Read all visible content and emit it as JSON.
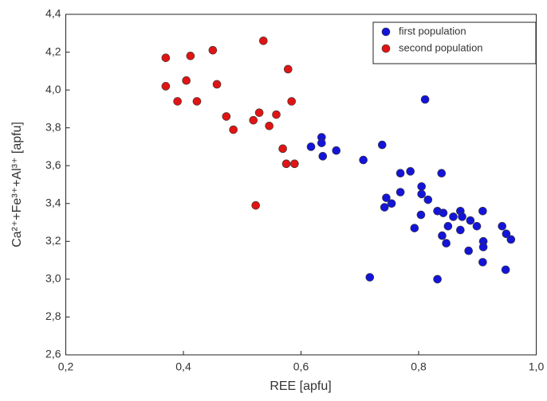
{
  "chart_data": {
    "type": "scatter",
    "xlabel": "REE [apfu]",
    "ylabel": "Ca²⁺+Fe³⁺+Al³⁺ [apfu]",
    "xlim": [
      0.2,
      1.0
    ],
    "ylim": [
      2.6,
      4.4
    ],
    "xticks": [
      {
        "value": 0.2,
        "label": "0,2"
      },
      {
        "value": 0.4,
        "label": "0,4"
      },
      {
        "value": 0.6,
        "label": "0,6"
      },
      {
        "value": 0.8,
        "label": "0,8"
      },
      {
        "value": 1.0,
        "label": "1,0"
      }
    ],
    "yticks": [
      {
        "value": 2.6,
        "label": "2,6"
      },
      {
        "value": 2.8,
        "label": "2,8"
      },
      {
        "value": 3.0,
        "label": "3,0"
      },
      {
        "value": 3.2,
        "label": "3,2"
      },
      {
        "value": 3.4,
        "label": "3,4"
      },
      {
        "value": 3.6,
        "label": "3,6"
      },
      {
        "value": 3.8,
        "label": "3,8"
      },
      {
        "value": 4.0,
        "label": "4,0"
      },
      {
        "value": 4.2,
        "label": "4,2"
      },
      {
        "value": 4.4,
        "label": "4,4"
      }
    ],
    "legend": "upper right",
    "series": [
      {
        "name": "first population",
        "color": "#1414d8",
        "x": [
          0.617,
          0.635,
          0.635,
          0.637,
          0.66,
          0.706,
          0.738,
          0.811,
          0.745,
          0.742,
          0.754,
          0.769,
          0.769,
          0.786,
          0.805,
          0.805,
          0.816,
          0.804,
          0.793,
          0.839,
          0.832,
          0.842,
          0.84,
          0.847,
          0.85,
          0.859,
          0.871,
          0.874,
          0.871,
          0.888,
          0.899,
          0.885,
          0.909,
          0.91,
          0.91,
          0.909,
          0.942,
          0.949,
          0.957,
          0.948,
          0.832,
          0.717
        ],
        "values": [
          3.7,
          3.75,
          3.72,
          3.65,
          3.68,
          3.63,
          3.71,
          3.95,
          3.43,
          3.38,
          3.4,
          3.46,
          3.56,
          3.57,
          3.49,
          3.45,
          3.42,
          3.34,
          3.27,
          3.56,
          3.36,
          3.35,
          3.23,
          3.19,
          3.28,
          3.33,
          3.36,
          3.33,
          3.26,
          3.31,
          3.28,
          3.15,
          3.36,
          3.2,
          3.17,
          3.09,
          3.28,
          3.24,
          3.21,
          3.05,
          3.0,
          3.01
        ]
      },
      {
        "name": "second population",
        "color": "#e01414",
        "x": [
          0.37,
          0.412,
          0.45,
          0.536,
          0.37,
          0.405,
          0.457,
          0.578,
          0.39,
          0.423,
          0.473,
          0.529,
          0.558,
          0.584,
          0.519,
          0.546,
          0.485,
          0.569,
          0.575,
          0.589,
          0.523
        ],
        "values": [
          4.17,
          4.18,
          4.21,
          4.26,
          4.02,
          4.05,
          4.03,
          4.11,
          3.94,
          3.94,
          3.86,
          3.88,
          3.87,
          3.94,
          3.84,
          3.81,
          3.79,
          3.69,
          3.61,
          3.61,
          3.39
        ]
      }
    ]
  }
}
